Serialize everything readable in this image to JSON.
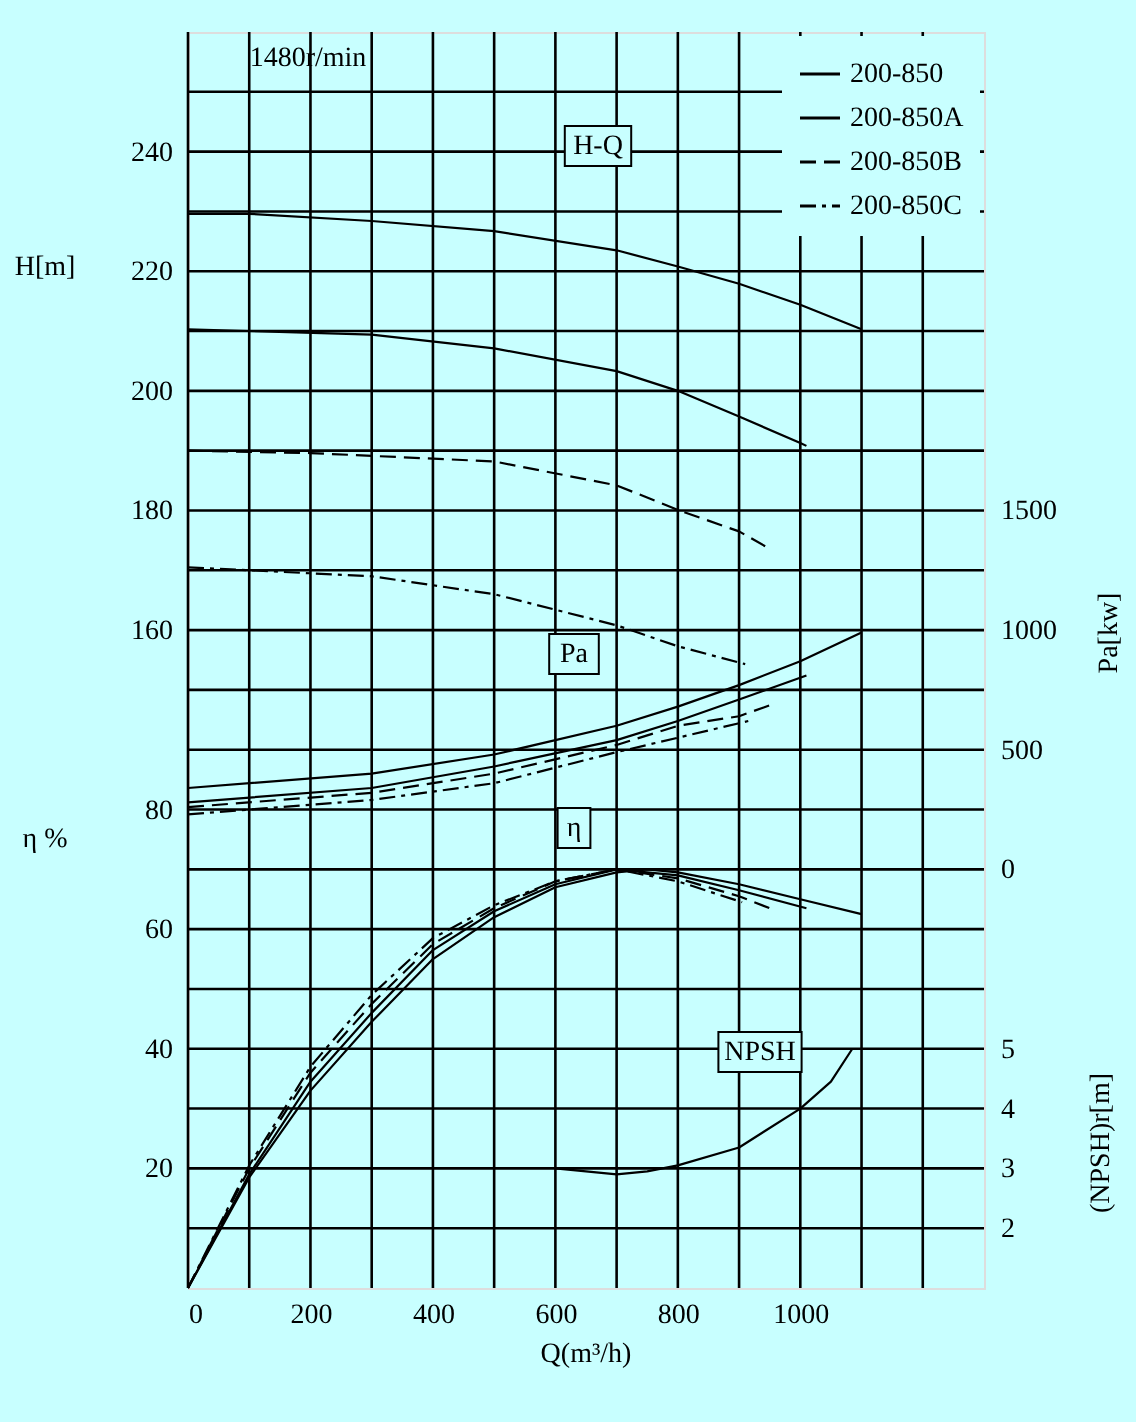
{
  "chart_data": [
    {
      "type": "line",
      "xlabel": "Q(m³/h)",
      "ylabel": "H[m]",
      "y2label": "Pa[kw]",
      "y3label": "η %",
      "xlim": [
        0,
        1300
      ],
      "xticks": [
        0,
        {
          "value": 100,
          "label": null
        },
        200,
        {
          "value": 300,
          "label": null
        },
        400,
        {
          "value": 500,
          "label": null
        },
        600,
        {
          "value": 700,
          "label": null
        },
        800,
        {
          "value": 900,
          "label": null
        },
        1000,
        {
          "value": 1100,
          "label": null
        },
        {
          "value": 1200,
          "label": null
        }
      ],
      "ylim": [
        50,
        260
      ],
      "yticks": [
        {
          "value": 60,
          "label": null
        },
        {
          "value": 70,
          "label": null
        },
        {
          "value": 80,
          "label": null
        },
        {
          "value": 90,
          "label": null
        },
        {
          "value": 100,
          "label": null
        },
        {
          "value": 110,
          "label": null
        },
        {
          "value": 120,
          "label": null
        },
        {
          "value": 130,
          "label": null
        },
        {
          "value": 140,
          "label": null
        },
        {
          "value": 150,
          "label": null
        },
        160,
        {
          "value": 170,
          "label": null
        },
        180,
        {
          "value": 190,
          "label": null
        },
        200,
        {
          "value": 210,
          "label": null
        },
        220,
        {
          "value": 230,
          "label": null
        },
        240,
        {
          "value": 250,
          "label": null
        }
      ],
      "y2lim": [
        -1750,
        3500
      ],
      "y2ticks": [
        0,
        500,
        1000,
        1500
      ],
      "y3lim": [
        0,
        210
      ],
      "y3ticks": [
        20,
        40,
        60,
        80
      ],
      "grid": true,
      "legend": "top right",
      "marker": "none",
      "annotations": [
        "1480r/min",
        "H-Q",
        "Pa",
        "η",
        "NPSH"
      ],
      "series": [
        {
          "name": "200-850",
          "color": "#000000",
          "line_style": "solid",
          "x": [
            0,
            100,
            300,
            500,
            700,
            800,
            900,
            1000,
            1100
          ],
          "values": [
            229.6,
            229.6,
            228.4,
            226.7,
            223.5,
            220.8,
            217.9,
            214.4,
            210.3
          ]
        },
        {
          "name": "200-850A",
          "color": "#000000",
          "line_style": "solid",
          "x": [
            0,
            300,
            500,
            700,
            800,
            900,
            1000,
            1010
          ],
          "values": [
            210.3,
            209.4,
            207.1,
            203.3,
            200,
            195.7,
            191.3,
            190.8
          ]
        },
        {
          "name": "200-850B",
          "color": "#000000",
          "line_style": "dashed",
          "x": [
            0,
            200,
            500,
            700,
            800,
            900,
            950
          ],
          "values": [
            190,
            189.6,
            188.2,
            184.2,
            180.1,
            176.5,
            173.6
          ]
        },
        {
          "name": "200-850C",
          "color": "#000000",
          "line_style": "dashdot",
          "x": [
            0,
            100,
            300,
            500,
            700,
            800,
            910
          ],
          "values": [
            170.5,
            170,
            169,
            166,
            160.8,
            157.3,
            154.3
          ]
        },
        {
          "color": "#000000",
          "line_style": "solid",
          "axis": "y2",
          "x": [
            0,
            300,
            500,
            700,
            800,
            900,
            1000,
            1100
          ],
          "values": [
            340,
            400,
            480,
            600,
            680,
            770,
            870,
            990
          ]
        },
        {
          "color": "#000000",
          "line_style": "solid",
          "axis": "y2",
          "x": [
            0,
            300,
            500,
            700,
            800,
            900,
            1010
          ],
          "values": [
            280,
            340,
            430,
            540,
            620,
            710,
            810
          ]
        },
        {
          "color": "#000000",
          "line_style": "dashed",
          "axis": "y2",
          "x": [
            0,
            300,
            500,
            700,
            800,
            900,
            955
          ],
          "values": [
            260,
            320,
            400,
            520,
            600,
            640,
            690
          ]
        },
        {
          "color": "#000000",
          "line_style": "dashdot",
          "axis": "y2",
          "x": [
            0,
            300,
            500,
            700,
            800,
            915
          ],
          "values": [
            230,
            290,
            360,
            490,
            550,
            620
          ]
        },
        {
          "color": "#000000",
          "line_style": "solid",
          "axis": "y3",
          "x": [
            0,
            100,
            200,
            300,
            400,
            500,
            600,
            700,
            750,
            800,
            900,
            1000,
            1100
          ],
          "values": [
            0,
            18.5,
            33,
            44.5,
            55,
            62,
            67,
            69.5,
            70,
            69.5,
            67.5,
            65,
            62.5
          ]
        },
        {
          "color": "#000000",
          "line_style": "solid",
          "axis": "y3",
          "x": [
            0,
            100,
            200,
            300,
            400,
            500,
            600,
            700,
            800,
            900,
            1010
          ],
          "values": [
            0,
            19,
            34.5,
            46,
            56.5,
            63,
            67.5,
            70,
            69,
            66.5,
            63.5
          ]
        },
        {
          "color": "#000000",
          "line_style": "dashed",
          "axis": "y3",
          "x": [
            0,
            100,
            200,
            300,
            400,
            500,
            600,
            700,
            800,
            900,
            950
          ],
          "values": [
            0,
            20,
            36,
            47.5,
            57.5,
            63.5,
            68,
            70,
            68.5,
            65.5,
            63.5
          ]
        },
        {
          "color": "#000000",
          "line_style": "dashdot",
          "axis": "y3",
          "x": [
            0,
            100,
            200,
            300,
            400,
            500,
            600,
            700,
            800,
            905
          ],
          "values": [
            0,
            20.5,
            37,
            49,
            58.5,
            64,
            68,
            70,
            68,
            64.5
          ]
        }
      ]
    },
    {
      "type": "line",
      "ylabel": "(NPSH)r[m]",
      "xlim": [
        0,
        1300
      ],
      "ylim": [
        1,
        22
      ],
      "yticks": [
        2,
        3,
        4,
        5
      ],
      "tick_labels": "y",
      "marker": "none",
      "series": [
        {
          "color": "#000000",
          "line_style": "solid",
          "x": [
            600,
            650,
            700,
            750,
            800,
            900,
            1000,
            1050,
            1085
          ],
          "values": [
            3.0,
            2.95,
            2.9,
            2.95,
            3.05,
            3.35,
            4.0,
            4.45,
            5.0
          ]
        }
      ]
    }
  ]
}
